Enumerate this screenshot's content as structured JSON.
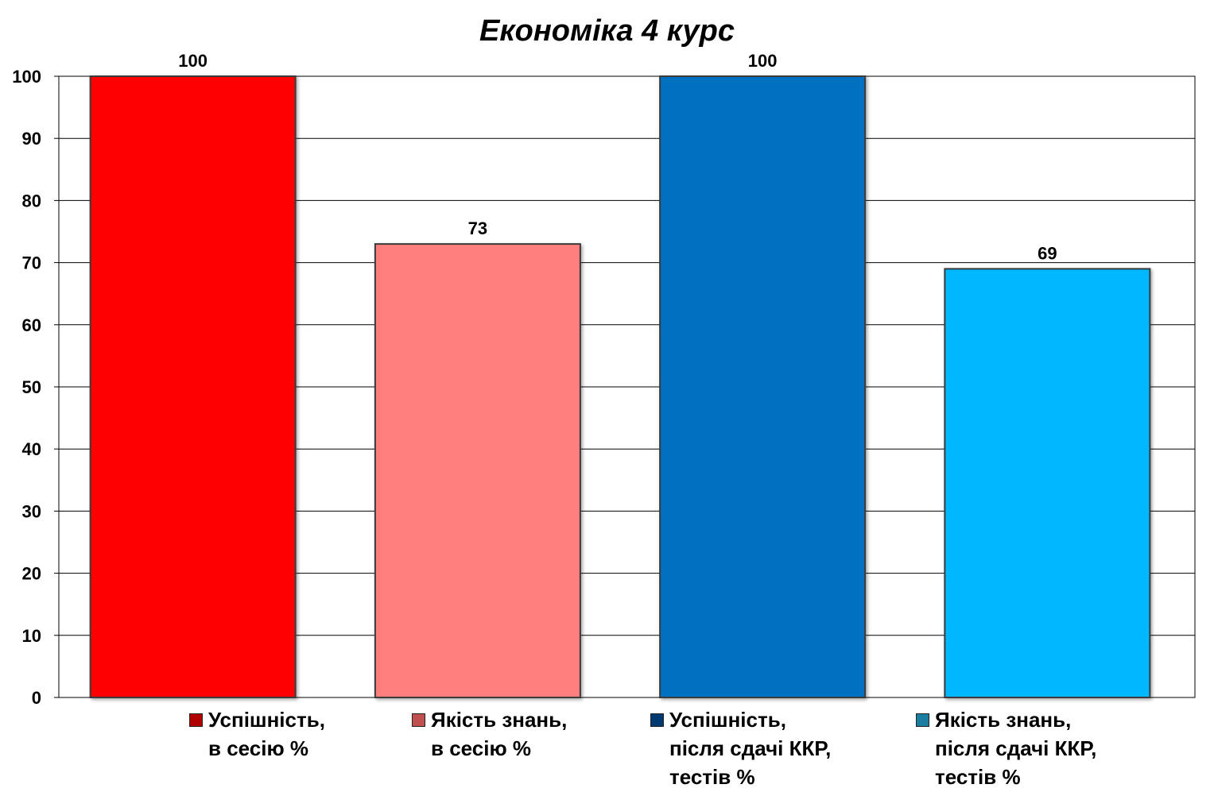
{
  "chart_data": {
    "type": "bar",
    "title": "Економіка 4 курс",
    "categories": [
      "Успішність, в сесію %",
      "Якість знань, в сесію %",
      "Успішність, після сдачі ККР, тестів %",
      "Якість знань, після сдачі ККР, тестів %"
    ],
    "values": [
      100,
      73,
      100,
      69
    ],
    "value_labels": [
      "100",
      "73",
      "100",
      "69"
    ],
    "colors": [
      "#ff0000",
      "#ff7f7f",
      "#0070c0",
      "#00b8ff"
    ],
    "legend_colors": [
      "#b00000",
      "#c05050",
      "#003a70",
      "#1a7ea0"
    ],
    "legend": [
      {
        "line1": "Успішність,",
        "line2": "в сесію %",
        "line3": ""
      },
      {
        "line1": "Якість знань,",
        "line2": "в сесію %",
        "line3": ""
      },
      {
        "line1": "Успішність,",
        "line2": "після сдачі ККР,",
        "line3": "тестів %"
      },
      {
        "line1": "Якість знань,",
        "line2": "після сдачі ККР,",
        "line3": "тестів %"
      }
    ],
    "legend_position": "bottom",
    "ylim": [
      0,
      100
    ],
    "yticks": [
      "0",
      "10",
      "20",
      "30",
      "40",
      "50",
      "60",
      "70",
      "80",
      "90",
      "100"
    ],
    "grid": true,
    "xlabel": "",
    "ylabel": ""
  }
}
